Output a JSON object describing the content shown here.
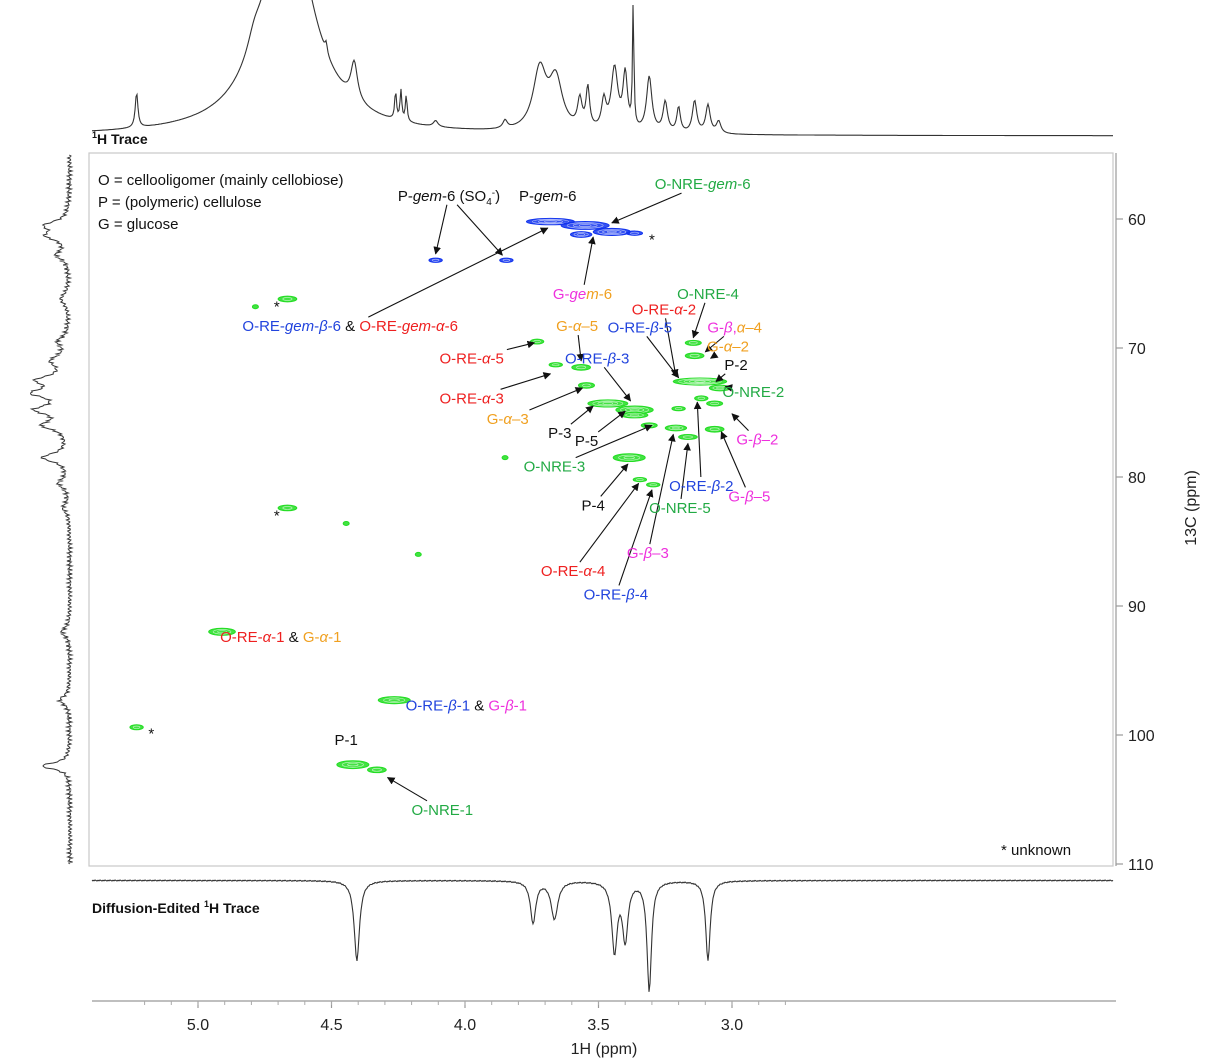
{
  "chart_data": {
    "type": "heatmap",
    "xlabel": "1H (ppm)",
    "ylabel": "13C (ppm)",
    "xlim": [
      5.25,
      2.75
    ],
    "ylim": [
      55,
      110
    ],
    "x_ticks": [
      "5.0",
      "4.5",
      "4.0",
      "3.5",
      "3.0"
    ],
    "x_tick_values": [
      5.0,
      4.5,
      4.0,
      3.5,
      3.0
    ],
    "y_ticks": [
      "60",
      "70",
      "80",
      "90",
      "100",
      "110"
    ],
    "y_tick_values": [
      60,
      70,
      80,
      90,
      100,
      110
    ],
    "top_trace_label": "Trace",
    "top_trace_label_sup": "1",
    "top_trace_label_nuc": "H",
    "bottom_trace_label": "Diffusion-Edited ",
    "bottom_trace_label_sup": "1",
    "bottom_trace_label_rest": "H Trace",
    "legend": [
      "O = cellooligomer (mainly cellobiose)",
      "P = (polymeric) cellulose",
      "G = glucose"
    ],
    "footnote": "* unknown",
    "colors": {
      "black": "#111111",
      "red": "#ee2020",
      "orange": "#f0a020",
      "blue": "#2244dd",
      "magenta": "#ee30dd",
      "green": "#22aa44",
      "peak_green": "#22dd22",
      "peak_blue": "#1133ee"
    },
    "peaks_green": [
      {
        "x": 4.665,
        "y": 66.2,
        "w": 0.035,
        "h": 0.4
      },
      {
        "x": 4.785,
        "y": 66.8,
        "w": 0.01,
        "h": 0.25
      },
      {
        "x": 4.665,
        "y": 82.4,
        "w": 0.035,
        "h": 0.4
      },
      {
        "x": 4.445,
        "y": 83.6,
        "w": 0.01,
        "h": 0.25
      },
      {
        "x": 4.175,
        "y": 86.0,
        "w": 0.01,
        "h": 0.25
      },
      {
        "x": 4.91,
        "y": 92.0,
        "w": 0.05,
        "h": 0.5
      },
      {
        "x": 4.265,
        "y": 97.3,
        "w": 0.06,
        "h": 0.5
      },
      {
        "x": 5.23,
        "y": 99.4,
        "w": 0.025,
        "h": 0.35
      },
      {
        "x": 4.42,
        "y": 102.3,
        "w": 0.06,
        "h": 0.55
      },
      {
        "x": 4.33,
        "y": 102.7,
        "w": 0.035,
        "h": 0.4
      },
      {
        "x": 3.85,
        "y": 78.5,
        "w": 0.01,
        "h": 0.25
      },
      {
        "x": 3.73,
        "y": 69.5,
        "w": 0.025,
        "h": 0.35
      },
      {
        "x": 3.66,
        "y": 71.3,
        "w": 0.025,
        "h": 0.3
      },
      {
        "x": 3.565,
        "y": 71.5,
        "w": 0.035,
        "h": 0.4
      },
      {
        "x": 3.545,
        "y": 72.9,
        "w": 0.03,
        "h": 0.4
      },
      {
        "x": 3.465,
        "y": 74.3,
        "w": 0.075,
        "h": 0.5
      },
      {
        "x": 3.365,
        "y": 74.8,
        "w": 0.07,
        "h": 0.55
      },
      {
        "x": 3.365,
        "y": 75.2,
        "w": 0.05,
        "h": 0.4
      },
      {
        "x": 3.31,
        "y": 76.0,
        "w": 0.03,
        "h": 0.35
      },
      {
        "x": 3.21,
        "y": 76.2,
        "w": 0.04,
        "h": 0.4
      },
      {
        "x": 3.385,
        "y": 78.5,
        "w": 0.06,
        "h": 0.55
      },
      {
        "x": 3.345,
        "y": 80.2,
        "w": 0.025,
        "h": 0.3
      },
      {
        "x": 3.295,
        "y": 80.6,
        "w": 0.025,
        "h": 0.3
      },
      {
        "x": 3.145,
        "y": 69.6,
        "w": 0.03,
        "h": 0.35
      },
      {
        "x": 3.14,
        "y": 70.6,
        "w": 0.035,
        "h": 0.4
      },
      {
        "x": 3.12,
        "y": 72.6,
        "w": 0.1,
        "h": 0.5
      },
      {
        "x": 3.045,
        "y": 73.1,
        "w": 0.04,
        "h": 0.4
      },
      {
        "x": 3.115,
        "y": 73.9,
        "w": 0.025,
        "h": 0.35
      },
      {
        "x": 3.065,
        "y": 74.3,
        "w": 0.03,
        "h": 0.35
      },
      {
        "x": 3.2,
        "y": 74.7,
        "w": 0.025,
        "h": 0.3
      },
      {
        "x": 3.065,
        "y": 76.3,
        "w": 0.035,
        "h": 0.4
      },
      {
        "x": 3.165,
        "y": 76.9,
        "w": 0.035,
        "h": 0.35
      }
    ],
    "peaks_blue": [
      {
        "x": 4.11,
        "y": 63.2,
        "w": 0.025,
        "h": 0.3
      },
      {
        "x": 3.845,
        "y": 63.2,
        "w": 0.025,
        "h": 0.3
      },
      {
        "x": 3.68,
        "y": 60.2,
        "w": 0.09,
        "h": 0.45
      },
      {
        "x": 3.55,
        "y": 60.5,
        "w": 0.09,
        "h": 0.55
      },
      {
        "x": 3.45,
        "y": 61.0,
        "w": 0.07,
        "h": 0.5
      },
      {
        "x": 3.565,
        "y": 61.2,
        "w": 0.04,
        "h": 0.4
      },
      {
        "x": 3.365,
        "y": 61.1,
        "w": 0.03,
        "h": 0.3
      }
    ],
    "annotations": [
      {
        "id": "pgem6so4",
        "x": 4.06,
        "y": 58.2,
        "parts": [
          [
            "P-",
            "black"
          ],
          [
            "gem",
            "black",
            "i"
          ],
          [
            "-6 (SO",
            "black"
          ],
          [
            "4",
            "black",
            "sub"
          ],
          [
            "-",
            "black",
            "sup"
          ],
          [
            ")",
            "black"
          ]
        ],
        "arrow_to": [
          [
            4.11,
            62.7
          ],
          [
            3.86,
            62.8
          ]
        ]
      },
      {
        "id": "pgem6",
        "x": 3.69,
        "y": 58.2,
        "parts": [
          [
            "P-",
            "black"
          ],
          [
            "gem",
            "black",
            "i"
          ],
          [
            "-6",
            "black"
          ]
        ]
      },
      {
        "id": "onregem6",
        "x": 3.11,
        "y": 57.3,
        "parts": [
          [
            "O-NRE-",
            "green"
          ],
          [
            "gem",
            "green",
            "i"
          ],
          [
            "-6",
            "green"
          ]
        ],
        "arrow_to": [
          [
            3.45,
            60.3
          ]
        ]
      },
      {
        "id": "ggem6",
        "x": 3.56,
        "y": 65.8,
        "parts": [
          [
            "G-",
            "magenta"
          ],
          [
            "ge",
            "magenta",
            "i"
          ],
          [
            "m",
            "orange",
            "i"
          ],
          [
            "-6",
            "orange"
          ]
        ],
        "arrow_to": [
          [
            3.52,
            61.4
          ]
        ]
      },
      {
        "id": "oregemb6",
        "x": 4.43,
        "y": 68.3,
        "parts": [
          [
            "O-RE-",
            "blue"
          ],
          [
            "gem",
            "blue",
            "i"
          ],
          [
            "-",
            "blue"
          ],
          [
            "β",
            "blue",
            "i"
          ],
          [
            "-6",
            "blue"
          ],
          [
            " & ",
            "black"
          ],
          [
            "O-RE-",
            "red"
          ],
          [
            "gem",
            "red",
            "i"
          ],
          [
            "-",
            "red"
          ],
          [
            "α",
            "red",
            "i"
          ],
          [
            "-6",
            "red"
          ]
        ],
        "arrow_to": [
          [
            3.69,
            60.7
          ]
        ]
      },
      {
        "id": "onre4",
        "x": 3.09,
        "y": 65.8,
        "parts": [
          [
            "O-NRE-4",
            "green"
          ]
        ],
        "arrow_to": [
          [
            3.145,
            69.2
          ]
        ]
      },
      {
        "id": "orea2",
        "x": 3.255,
        "y": 67.0,
        "parts": [
          [
            "O-RE-",
            "red"
          ],
          [
            "α",
            "red",
            "i"
          ],
          [
            "-2",
            "red"
          ]
        ],
        "arrow_to": [
          [
            3.21,
            72.2
          ]
        ]
      },
      {
        "id": "gba4",
        "x": 2.99,
        "y": 68.4,
        "parts": [
          [
            "G-",
            "magenta"
          ],
          [
            "β",
            "magenta",
            "i"
          ],
          [
            ",",
            "magenta"
          ],
          [
            "α",
            "orange",
            "i"
          ],
          [
            "–4",
            "orange"
          ]
        ],
        "arrow_to": [
          [
            3.1,
            70.3
          ]
        ]
      },
      {
        "id": "ga5",
        "x": 3.58,
        "y": 68.3,
        "parts": [
          [
            "G-",
            "orange"
          ],
          [
            "α",
            "orange",
            "i"
          ],
          [
            "–5",
            "orange"
          ]
        ],
        "arrow_to": [
          [
            3.565,
            71.0
          ]
        ]
      },
      {
        "id": "oreb5",
        "x": 3.345,
        "y": 68.4,
        "parts": [
          [
            "O-RE-",
            "blue"
          ],
          [
            "β",
            "blue",
            "i"
          ],
          [
            "-5",
            "blue"
          ]
        ],
        "arrow_to": [
          [
            3.2,
            72.3
          ]
        ]
      },
      {
        "id": "ga2",
        "x": 3.015,
        "y": 69.9,
        "parts": [
          [
            "G-",
            "orange"
          ],
          [
            "α",
            "orange",
            "i"
          ],
          [
            "–2",
            "orange"
          ]
        ],
        "arrow_to": [
          [
            3.08,
            70.8
          ]
        ]
      },
      {
        "id": "orea5",
        "x": 3.975,
        "y": 70.8,
        "parts": [
          [
            "O-RE-",
            "red"
          ],
          [
            "α",
            "red",
            "i"
          ],
          [
            "-5",
            "red"
          ]
        ],
        "arrow_to": [
          [
            3.74,
            69.6
          ]
        ]
      },
      {
        "id": "oreb3",
        "x": 3.505,
        "y": 70.8,
        "parts": [
          [
            "O-RE-",
            "blue"
          ],
          [
            "β",
            "blue",
            "i"
          ],
          [
            "-3",
            "blue"
          ]
        ],
        "arrow_to": [
          [
            3.38,
            74.1
          ]
        ]
      },
      {
        "id": "p2",
        "x": 2.985,
        "y": 71.3,
        "parts": [
          [
            "P-2",
            "black"
          ]
        ],
        "arrow_to": [
          [
            3.06,
            72.6
          ]
        ]
      },
      {
        "id": "orea3",
        "x": 3.975,
        "y": 73.9,
        "parts": [
          [
            "O-RE-",
            "red"
          ],
          [
            "α",
            "red",
            "i"
          ],
          [
            "-3",
            "red"
          ]
        ],
        "arrow_to": [
          [
            3.68,
            72.0
          ]
        ]
      },
      {
        "id": "onre2",
        "x": 2.92,
        "y": 73.4,
        "parts": [
          [
            "O-NRE-2",
            "green"
          ]
        ],
        "arrow_to": [
          [
            3.025,
            73.0
          ]
        ]
      },
      {
        "id": "ga3",
        "x": 3.84,
        "y": 75.5,
        "parts": [
          [
            "G-",
            "orange"
          ],
          [
            "α",
            "orange",
            "i"
          ],
          [
            "–3",
            "orange"
          ]
        ],
        "arrow_to": [
          [
            3.56,
            73.1
          ]
        ]
      },
      {
        "id": "p3",
        "x": 3.645,
        "y": 76.6,
        "parts": [
          [
            "P-3",
            "black"
          ]
        ],
        "arrow_to": [
          [
            3.52,
            74.5
          ]
        ]
      },
      {
        "id": "p5",
        "x": 3.545,
        "y": 77.2,
        "parts": [
          [
            "P-5",
            "black"
          ]
        ],
        "arrow_to": [
          [
            3.4,
            74.9
          ]
        ]
      },
      {
        "id": "gb2",
        "x": 2.905,
        "y": 77.1,
        "parts": [
          [
            "G-",
            "magenta"
          ],
          [
            "β",
            "magenta",
            "i"
          ],
          [
            "–2",
            "magenta"
          ]
        ],
        "arrow_to": [
          [
            3.0,
            75.1
          ]
        ]
      },
      {
        "id": "onre3",
        "x": 3.665,
        "y": 79.2,
        "parts": [
          [
            "O-NRE-3",
            "green"
          ]
        ],
        "arrow_to": [
          [
            3.3,
            76.0
          ]
        ]
      },
      {
        "id": "oreb2",
        "x": 3.115,
        "y": 80.7,
        "parts": [
          [
            "O-RE-",
            "blue"
          ],
          [
            "β",
            "blue",
            "i"
          ],
          [
            "-2",
            "blue"
          ]
        ],
        "arrow_to": [
          [
            3.13,
            74.2
          ]
        ]
      },
      {
        "id": "gb5",
        "x": 2.935,
        "y": 81.5,
        "parts": [
          [
            "G-",
            "magenta"
          ],
          [
            "β",
            "magenta",
            "i"
          ],
          [
            "–5",
            "magenta"
          ]
        ],
        "arrow_to": [
          [
            3.04,
            76.5
          ]
        ]
      },
      {
        "id": "p4",
        "x": 3.52,
        "y": 82.2,
        "parts": [
          [
            "P-4",
            "black"
          ]
        ],
        "arrow_to": [
          [
            3.39,
            79.0
          ]
        ]
      },
      {
        "id": "onre5",
        "x": 3.195,
        "y": 82.4,
        "parts": [
          [
            "O-NRE-5",
            "green"
          ]
        ],
        "arrow_to": [
          [
            3.165,
            77.4
          ]
        ]
      },
      {
        "id": "gb3",
        "x": 3.315,
        "y": 85.9,
        "parts": [
          [
            "G-",
            "magenta"
          ],
          [
            "β",
            "magenta",
            "i"
          ],
          [
            "–3",
            "magenta"
          ]
        ],
        "arrow_to": [
          [
            3.22,
            76.7
          ]
        ]
      },
      {
        "id": "orea4",
        "x": 3.595,
        "y": 87.3,
        "parts": [
          [
            "O-RE-",
            "red"
          ],
          [
            "α",
            "red",
            "i"
          ],
          [
            "-4",
            "red"
          ]
        ],
        "arrow_to": [
          [
            3.35,
            80.5
          ]
        ]
      },
      {
        "id": "oreb4",
        "x": 3.435,
        "y": 89.1,
        "parts": [
          [
            "O-RE-",
            "blue"
          ],
          [
            "β",
            "blue",
            "i"
          ],
          [
            "-4",
            "blue"
          ]
        ],
        "arrow_to": [
          [
            3.3,
            81.0
          ]
        ]
      },
      {
        "id": "orea1",
        "x": 4.69,
        "y": 92.4,
        "parts": [
          [
            "O-RE-",
            "red"
          ],
          [
            "α",
            "red",
            "i"
          ],
          [
            "-1",
            "red"
          ],
          [
            " & ",
            "black"
          ],
          [
            "G-",
            "orange"
          ],
          [
            "α",
            "orange",
            "i"
          ],
          [
            "-1",
            "orange"
          ]
        ]
      },
      {
        "id": "oreb1",
        "x": 3.995,
        "y": 97.7,
        "parts": [
          [
            "O-RE-",
            "blue"
          ],
          [
            "β",
            "blue",
            "i"
          ],
          [
            "-1",
            "blue"
          ],
          [
            " & ",
            "black"
          ],
          [
            "G-",
            "magenta"
          ],
          [
            "β",
            "magenta",
            "i"
          ],
          [
            "-1",
            "magenta"
          ]
        ]
      },
      {
        "id": "p1",
        "x": 4.445,
        "y": 100.4,
        "parts": [
          [
            "P-1",
            "black"
          ]
        ]
      },
      {
        "id": "onre1",
        "x": 4.085,
        "y": 105.8,
        "parts": [
          [
            "O-NRE-1",
            "green"
          ]
        ],
        "arrow_to": [
          [
            4.29,
            103.3
          ]
        ]
      },
      {
        "id": "ast1",
        "x": 4.705,
        "y": 66.8,
        "parts": [
          [
            "*",
            "black"
          ]
        ]
      },
      {
        "id": "ast2",
        "x": 4.705,
        "y": 83.0,
        "parts": [
          [
            "*",
            "black"
          ]
        ]
      },
      {
        "id": "ast3",
        "x": 5.175,
        "y": 99.9,
        "parts": [
          [
            "*",
            "black"
          ]
        ]
      },
      {
        "id": "ast4",
        "x": 3.3,
        "y": 61.6,
        "parts": [
          [
            "*",
            "black"
          ]
        ]
      }
    ]
  }
}
